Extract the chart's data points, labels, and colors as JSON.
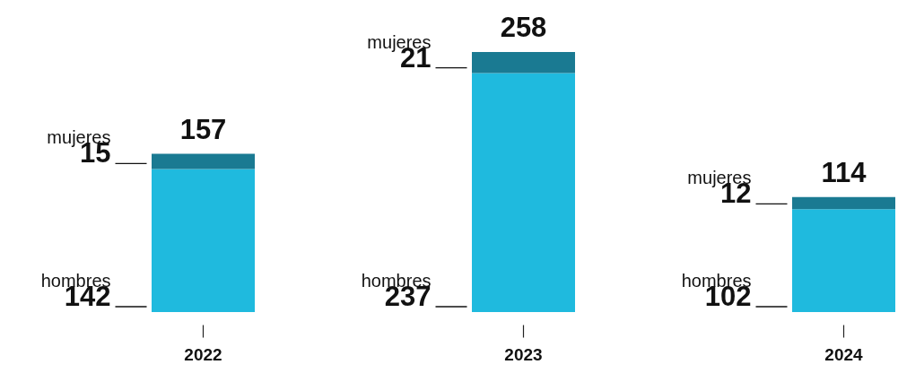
{
  "chart_data": {
    "type": "bar",
    "stacked": true,
    "data_labels": true,
    "categories": [
      "2022",
      "2023",
      "2024"
    ],
    "series": [
      {
        "name": "hombres",
        "color": "#1fbade",
        "values": [
          142,
          237,
          102
        ]
      },
      {
        "name": "mujeres",
        "color": "#1a7a92",
        "values": [
          15,
          21,
          12
        ]
      }
    ],
    "totals": [
      "157",
      "258",
      "114"
    ]
  }
}
